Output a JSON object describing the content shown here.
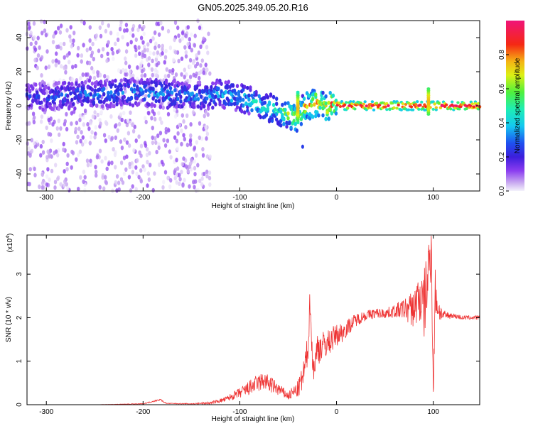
{
  "figure": {
    "title": "GN05.2025.349.05.20.R16"
  },
  "chart_data": [
    {
      "type": "heatmap",
      "title": "GN05.2025.349.05.20.R16",
      "xlabel": "Height of straight line (km)",
      "ylabel": "Frequency (Hz)",
      "xlim": [
        -320,
        148
      ],
      "ylim": [
        -50,
        50
      ],
      "x_ticks": [
        -300,
        -200,
        -100,
        0,
        100
      ],
      "x_tick_labels": [
        "-300",
        "-200",
        "-100",
        "0",
        "100"
      ],
      "y_ticks": [
        -40,
        -20,
        0,
        20,
        40
      ],
      "y_tick_labels": [
        "-40",
        "-20",
        "0",
        "20",
        "40"
      ],
      "colorbar": {
        "label": "Normalized spectral amplitude",
        "range": [
          0,
          1
        ],
        "ticks": [
          0.0,
          0.2,
          0.4,
          0.6,
          0.8
        ],
        "tick_labels": [
          "0.0",
          "0.2",
          "0.4",
          "0.6",
          "0.8"
        ],
        "colormap": "rainbow (white-lavender -> purple -> blue -> cyan -> green -> yellow -> orange -> red -> magenta)"
      },
      "ridge": {
        "description": "dominant frequency band vs height",
        "x": [
          -320,
          -280,
          -250,
          -220,
          -200,
          -180,
          -160,
          -140,
          -120,
          -100,
          -90,
          -80,
          -70,
          -60,
          -55,
          -50,
          -45,
          -42,
          -40,
          -38,
          -35,
          -30,
          -25,
          -20,
          -15,
          -10,
          -5,
          0,
          5,
          20,
          50,
          90,
          100,
          120,
          148
        ],
        "y": [
          5,
          6,
          7,
          8,
          8,
          7,
          6,
          6,
          7,
          5,
          3,
          1,
          -1,
          -3,
          -4,
          -5,
          -6,
          -7,
          -8,
          -5,
          -2,
          0,
          1,
          2,
          0,
          -1,
          1,
          1,
          0,
          0,
          0,
          0,
          0,
          0,
          0
        ],
        "amplitude": [
          0.3,
          0.35,
          0.4,
          0.4,
          0.4,
          0.45,
          0.4,
          0.4,
          0.45,
          0.5,
          0.5,
          0.55,
          0.6,
          0.65,
          0.7,
          0.75,
          0.8,
          0.85,
          0.85,
          0.8,
          0.85,
          0.9,
          0.95,
          1.0,
          1.0,
          1.0,
          1.0,
          1.0,
          1.0,
          1.0,
          1.0,
          1.0,
          1.0,
          1.0,
          1.0
        ]
      },
      "bright_features": [
        {
          "x": -40,
          "y_range": [
            -10,
            8
          ],
          "description": "vertical spread near -40 km"
        },
        {
          "x": -35,
          "y": -24,
          "description": "isolated spot"
        },
        {
          "x": 95,
          "y_range": [
            -5,
            10
          ],
          "description": "vertical spread near 95 km"
        }
      ],
      "noise_region": {
        "x_range": [
          -320,
          -130
        ],
        "y_range": [
          -50,
          50
        ],
        "amplitude": "low (0.0-0.1), scattered"
      }
    },
    {
      "type": "line",
      "xlabel": "Height of straight line (km)",
      "ylabel": "SNR (10 * v/v)",
      "y_multiplier": "(x10^4)",
      "xlim": [
        -320,
        148
      ],
      "ylim": [
        0,
        3.9
      ],
      "x_ticks": [
        -300,
        -200,
        -100,
        0,
        100
      ],
      "x_tick_labels": [
        "-300",
        "-200",
        "-100",
        "0",
        "100"
      ],
      "y_ticks": [
        0,
        1,
        2,
        3
      ],
      "y_tick_labels": [
        "0",
        "1",
        "2",
        "3"
      ],
      "series": [
        {
          "color": "#ee3333",
          "x": [
            -320,
            -300,
            -250,
            -200,
            -182,
            -178,
            -175,
            -150,
            -130,
            -115,
            -105,
            -95,
            -85,
            -75,
            -65,
            -55,
            -50,
            -45,
            -40,
            -35,
            -30,
            -27,
            -25,
            -22,
            -20,
            -15,
            -10,
            -5,
            0,
            5,
            10,
            20,
            30,
            40,
            50,
            60,
            70,
            80,
            85,
            90,
            95,
            98,
            100,
            102,
            105,
            110,
            120,
            130,
            140,
            148
          ],
          "y": [
            0.0,
            0.0,
            0.0,
            0.02,
            0.12,
            0.05,
            0.03,
            0.02,
            0.04,
            0.12,
            0.22,
            0.32,
            0.45,
            0.55,
            0.42,
            0.28,
            0.2,
            0.28,
            0.35,
            0.6,
            1.2,
            2.5,
            0.9,
            0.95,
            1.3,
            1.35,
            1.4,
            1.5,
            1.6,
            1.65,
            1.75,
            1.95,
            2.05,
            2.1,
            2.1,
            2.15,
            2.2,
            2.2,
            2.5,
            2.2,
            3.0,
            3.8,
            0.2,
            2.6,
            2.2,
            2.05,
            2.05,
            2.0,
            2.0,
            2.0
          ],
          "noise": [
            0.0,
            0.0,
            0.0,
            0.01,
            0.02,
            0.01,
            0.01,
            0.01,
            0.03,
            0.06,
            0.1,
            0.15,
            0.2,
            0.22,
            0.18,
            0.12,
            0.1,
            0.15,
            0.2,
            0.3,
            0.4,
            0.4,
            0.4,
            0.35,
            0.4,
            0.35,
            0.3,
            0.3,
            0.25,
            0.25,
            0.2,
            0.15,
            0.12,
            0.12,
            0.12,
            0.15,
            0.25,
            0.45,
            0.6,
            0.8,
            0.9,
            0.8,
            0.2,
            0.6,
            0.3,
            0.12,
            0.06,
            0.05,
            0.05,
            0.05
          ]
        }
      ]
    }
  ]
}
